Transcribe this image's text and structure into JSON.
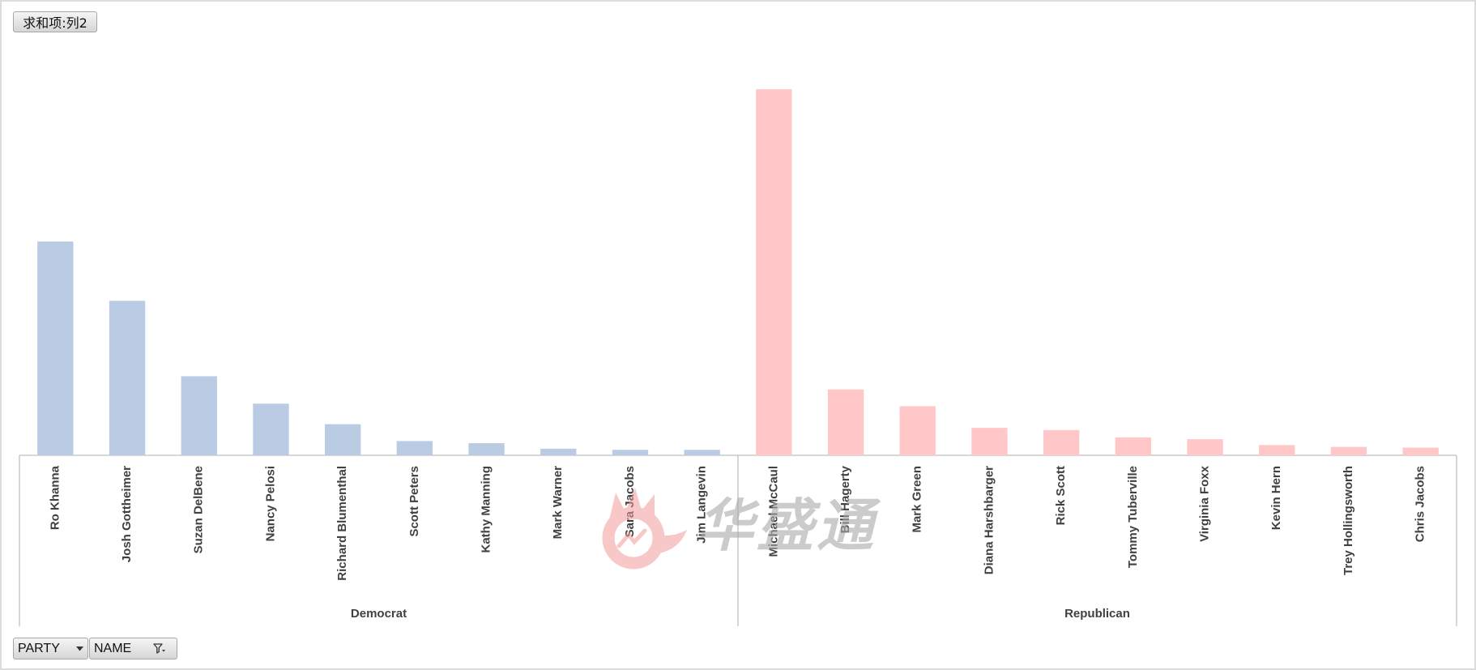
{
  "field_buttons": {
    "value_field": {
      "label": "求和项:列2"
    },
    "axis_fields": [
      {
        "label": "PARTY",
        "icon": "dropdown-arrow-icon"
      },
      {
        "label": "NAME",
        "icon": "filter-icon"
      }
    ]
  },
  "watermark": {
    "text": "华盛通",
    "logo_color": "#F39A9A"
  },
  "chart_data": {
    "type": "bar",
    "y_axis_visible": false,
    "grid": false,
    "legend": "none",
    "axis_line_color": "#BFBFBF",
    "groups": [
      {
        "name": "Democrat",
        "color": "#B9CCE4",
        "categories": [
          "Ro Khanna",
          "Josh Gottheimer",
          "Suzan DelBene",
          "Nancy Pelosi",
          "Richard Blumenthal",
          "Scott Peters",
          "Kathy Manning",
          "Mark Warner",
          "Sara Jacobs",
          "Jim Langevin"
        ],
        "values": [
          58.4,
          42.2,
          21.6,
          14.1,
          8.5,
          3.9,
          3.3,
          1.8,
          1.5,
          1.5
        ]
      },
      {
        "name": "Republican",
        "color": "#FFC7C7",
        "categories": [
          "Michael McCaul",
          "Bill Hagerty",
          "Mark Green",
          "Diana Harshbarger",
          "Rick Scott",
          "Tommy Tuberville",
          "Virginia Foxx",
          "Kevin Hern",
          "Trey Hollingsworth",
          "Chris Jacobs"
        ],
        "values": [
          100,
          18.0,
          13.4,
          7.5,
          6.9,
          4.9,
          4.4,
          2.8,
          2.3,
          2.1
        ]
      }
    ]
  }
}
